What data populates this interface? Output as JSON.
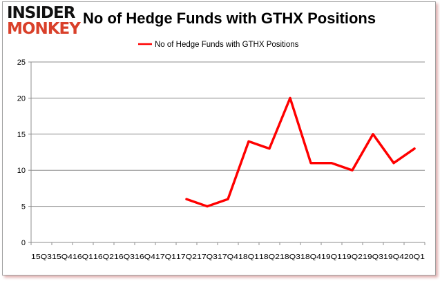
{
  "logo": {
    "line1": "INSIDER",
    "line2": "MONKEY"
  },
  "chart_data": {
    "type": "line",
    "title": "No of Hedge Funds with GTHX Positions",
    "xlabel": "",
    "ylabel": "",
    "categories": [
      "15Q3",
      "15Q4",
      "16Q1",
      "16Q2",
      "16Q3",
      "16Q4",
      "17Q1",
      "17Q2",
      "17Q3",
      "17Q4",
      "18Q1",
      "18Q2",
      "18Q3",
      "18Q4",
      "19Q1",
      "19Q2",
      "19Q3",
      "19Q4",
      "20Q1"
    ],
    "series": [
      {
        "name": "No of Hedge Funds with GTHX Positions",
        "color": "#ff0000",
        "values": [
          null,
          null,
          null,
          null,
          null,
          null,
          null,
          6,
          5,
          6,
          14,
          13,
          20,
          11,
          11,
          10,
          15,
          11,
          13
        ]
      }
    ],
    "ylim": [
      0,
      25
    ],
    "yticks": [
      0,
      5,
      10,
      15,
      20,
      25
    ],
    "grid": true,
    "legend": "top-center"
  }
}
